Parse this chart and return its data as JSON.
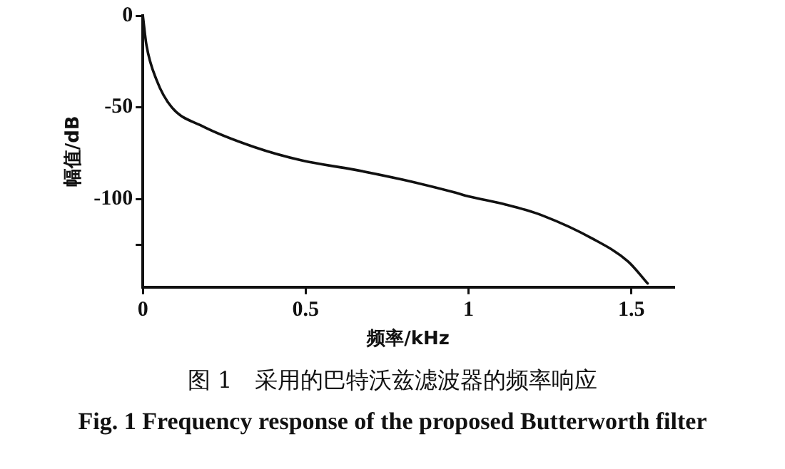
{
  "chart_data": {
    "type": "line",
    "xlabel": "频率/kHz",
    "ylabel": "幅值/dB",
    "x": [
      0,
      0.011,
      0.042,
      0.089,
      0.18,
      0.34,
      0.49,
      0.65,
      0.8,
      0.96,
      1.0,
      1.11,
      1.22,
      1.38,
      1.49,
      1.55
    ],
    "series": [
      {
        "color": "#111111",
        "values": [
          0,
          -16,
          -35,
          -50,
          -60,
          -71.5,
          -79,
          -84,
          -89.5,
          -96.5,
          -98.5,
          -102.8,
          -108.5,
          -121.5,
          -134,
          -146
        ]
      }
    ],
    "xlim": [
      0,
      1.63
    ],
    "xticks": [
      0,
      0.5,
      1,
      1.5
    ],
    "ylim": [
      -148,
      0
    ],
    "yticks": [
      0,
      -50,
      -100,
      {
        "value": -125,
        "label": null
      }
    ],
    "grid": false,
    "legend": false,
    "marker": "none",
    "line_style": "solid",
    "annotations": [
      "图 1　采用的巴特沃兹滤波器的频率响应",
      "Fig. 1 Frequency response of the proposed Butterworth filter"
    ]
  }
}
